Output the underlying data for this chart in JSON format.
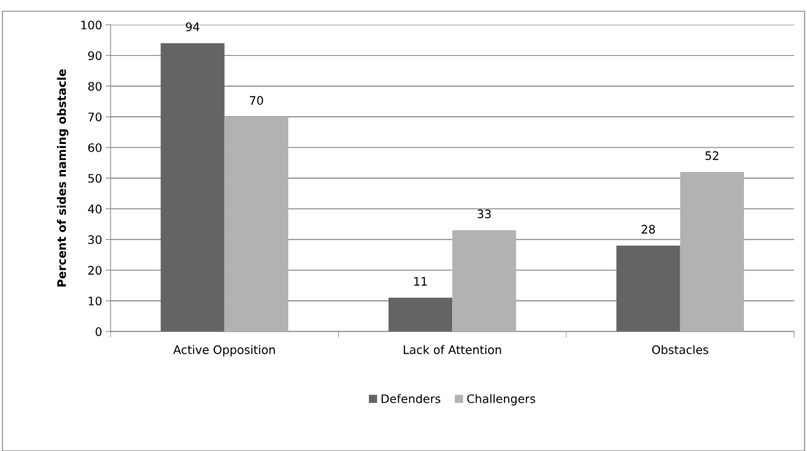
{
  "chart_data": {
    "type": "bar",
    "ylabel": "Percent of sides naming obstacle",
    "categories": [
      "Active Opposition",
      "Lack of Attention",
      "Obstacles"
    ],
    "series": [
      {
        "name": "Defenders",
        "color": "#646464",
        "values": [
          94,
          11,
          28
        ]
      },
      {
        "name": "Challengers",
        "color": "#b2b2b2",
        "values": [
          70,
          33,
          52
        ]
      }
    ],
    "ylim": [
      0,
      100
    ],
    "yticks": [
      0,
      10,
      20,
      30,
      40,
      50,
      60,
      70,
      80,
      90,
      100
    ],
    "grid": "y",
    "legend": "bottom",
    "data_labels": true
  }
}
